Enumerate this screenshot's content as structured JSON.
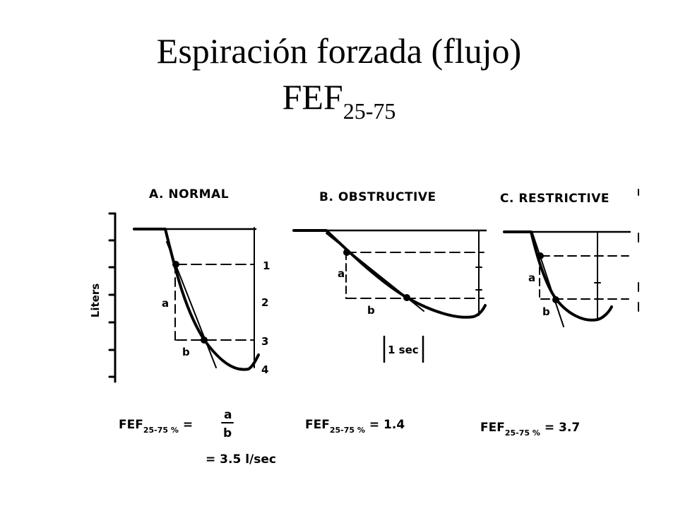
{
  "title": {
    "line1": "Espiración forzada (flujo)",
    "line2_main": "FEF",
    "line2_sub": "25-75"
  },
  "y_axis_label": "Liters",
  "panels": [
    {
      "id": "normal",
      "heading": "A. NORMAL",
      "label_a": "a",
      "label_b": "b",
      "right_ticks": [
        "1",
        "2",
        "3",
        "4"
      ],
      "equation": {
        "lhs": "FEF",
        "sub": "25-75 %",
        "eq": "=",
        "num": "a",
        "den": "b",
        "result": "= 3.5  l/sec"
      }
    },
    {
      "id": "obstructive",
      "heading": "B. OBSTRUCTIVE",
      "label_a": "a",
      "label_b": "b",
      "time_marker": "1 sec",
      "equation": {
        "lhs": "FEF",
        "sub": "25-75 %",
        "rhs": "= 1.4"
      }
    },
    {
      "id": "restrictive",
      "heading": "C. RESTRICTIVE",
      "label_a": "a",
      "label_b": "b",
      "equation": {
        "lhs": "FEF",
        "sub": "25-75 %",
        "rhs": "= 3.7"
      }
    }
  ]
}
